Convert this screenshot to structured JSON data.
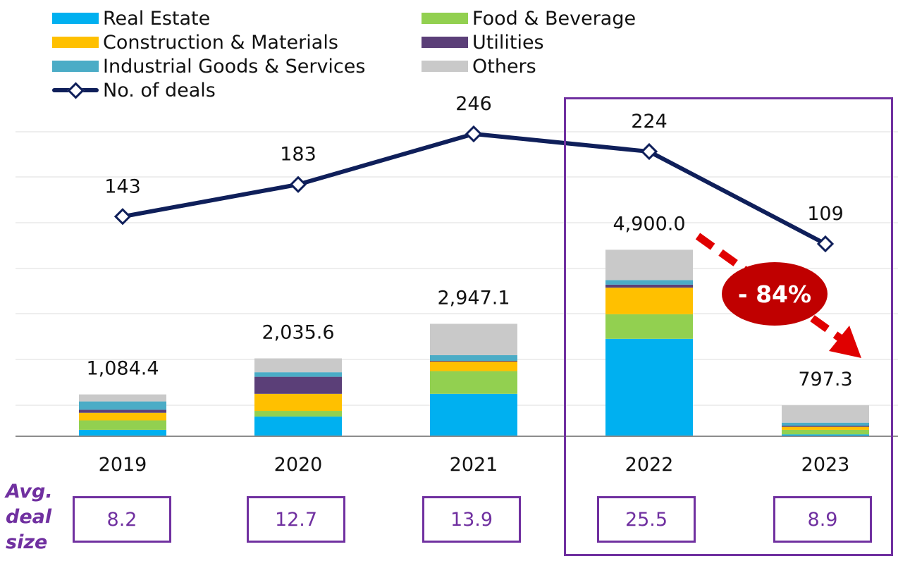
{
  "legend": {
    "items": [
      {
        "label": "Real Estate",
        "color": "#00b0f0"
      },
      {
        "label": "Food & Beverage",
        "color": "#92d050"
      },
      {
        "label": "Construction & Materials",
        "color": "#ffc000"
      },
      {
        "label": "Utilities",
        "color": "#5b3f78"
      },
      {
        "label": "Industrial Goods & Services",
        "color": "#4bacc6"
      },
      {
        "label": "Others",
        "color": "#c9c9c9"
      }
    ],
    "line_label": "No. of deals",
    "line_color": "#0f1f5a"
  },
  "chart_data": {
    "type": "bar",
    "stacked": true,
    "categories": [
      "2019",
      "2020",
      "2021",
      "2022",
      "2023"
    ],
    "series": [
      {
        "name": "Real Estate",
        "values": [
          150,
          500,
          1100,
          2550,
          30
        ]
      },
      {
        "name": "Food & Beverage",
        "values": [
          250,
          150,
          600,
          650,
          120
        ]
      },
      {
        "name": "Construction & Materials",
        "values": [
          200,
          450,
          250,
          700,
          80
        ]
      },
      {
        "name": "Utilities",
        "values": [
          80,
          450,
          20,
          80,
          30
        ]
      },
      {
        "name": "Industrial Goods & Services",
        "values": [
          220,
          120,
          150,
          120,
          80
        ]
      },
      {
        "name": "Others",
        "values": [
          184.4,
          365.6,
          827.1,
          800,
          457.3
        ]
      }
    ],
    "totals": [
      1084.4,
      2035.6,
      2947.1,
      4900.0,
      797.3
    ],
    "total_labels": [
      "1,084.4",
      "2,035.6",
      "2,947.1",
      "4,900.0",
      "797.3"
    ],
    "line_series": {
      "name": "No. of deals",
      "values": [
        143,
        183,
        246,
        224,
        109
      ]
    },
    "avg_deal_size": [
      "8.2",
      "12.7",
      "13.9",
      "25.5",
      "8.9"
    ],
    "ylim": [
      0,
      5000
    ],
    "line_ylim": [
      0,
      300
    ],
    "grid": true,
    "legend_position": "top",
    "annotation": "- 84%"
  },
  "avg_label": [
    "Avg.",
    "deal",
    "size"
  ],
  "annotation": {
    "text": "- 84%",
    "color": "#c00000"
  },
  "highlight_color": "#7030a0"
}
